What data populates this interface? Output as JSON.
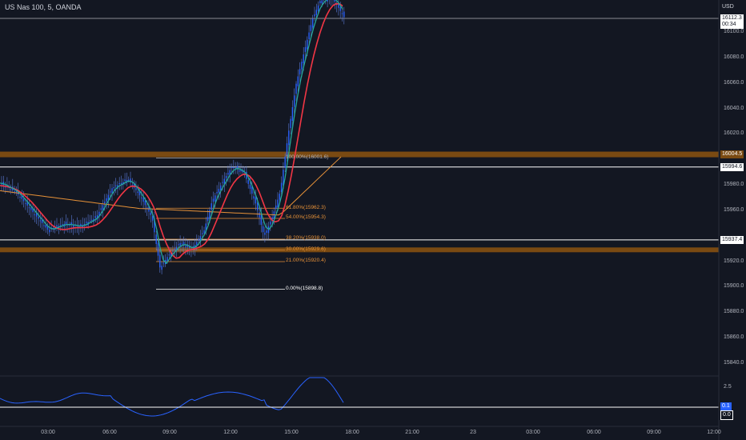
{
  "header": {
    "title": "US Nas 100, 5, OANDA",
    "unit": "USD"
  },
  "price_scale": {
    "ticks": [
      "16100.0",
      "16080.0",
      "16060.0",
      "16040.0",
      "16020.0",
      "15980.0",
      "15960.0",
      "15920.0",
      "15900.0",
      "15880.0",
      "15860.0",
      "15840.0"
    ],
    "partial_label": "16120.0",
    "current": {
      "price": "16112.3",
      "countdown": "00:34"
    },
    "markers": [
      {
        "price": "16004.5",
        "bg": "#7a4a12",
        "fg": "#ffffff",
        "border": "#7a4a12"
      },
      {
        "price": "15994.6",
        "bg": "#ffffff",
        "fg": "#131722",
        "border": "#ffffff"
      },
      {
        "price": "15937.4",
        "bg": "#ffffff",
        "fg": "#131722",
        "border": "#ffffff"
      }
    ]
  },
  "time_axis": [
    "03:00",
    "06:00",
    "09:00",
    "12:00",
    "15:00",
    "18:00",
    "21:00",
    "23",
    "03:00",
    "06:00",
    "09:00",
    "12:00"
  ],
  "fib_levels": [
    {
      "label": "100.00%(16001.6)",
      "price": 16001.6,
      "color": "#b2b5be"
    },
    {
      "label": "61.80%(15962.3)",
      "price": 15962.3,
      "color": "#e69138"
    },
    {
      "label": "54.00%(15954.3)",
      "price": 15954.3,
      "color": "#e69138"
    },
    {
      "label": "38.20%(15938.0)",
      "price": 15938.0,
      "color": "#e69138"
    },
    {
      "label": "30.00%(15929.6)",
      "price": 15929.6,
      "color": "#e69138"
    },
    {
      "label": "21.00%(15920.4)",
      "price": 15920.4,
      "color": "#e69138"
    },
    {
      "label": "0.00%(15898.8)",
      "price": 15898.8,
      "color": "#ffffff"
    }
  ],
  "oscillator": {
    "ticks": [
      "2.5"
    ],
    "current": "0.1",
    "baseline": "0.0"
  },
  "colors": {
    "background": "#131722",
    "candles": "#2962ff",
    "ema_fast": "#26a69a",
    "ema_mid": "#f23645",
    "ema_slow": "#e69138",
    "zone": "#7a4a12",
    "oscillator": "#2962ff"
  }
}
